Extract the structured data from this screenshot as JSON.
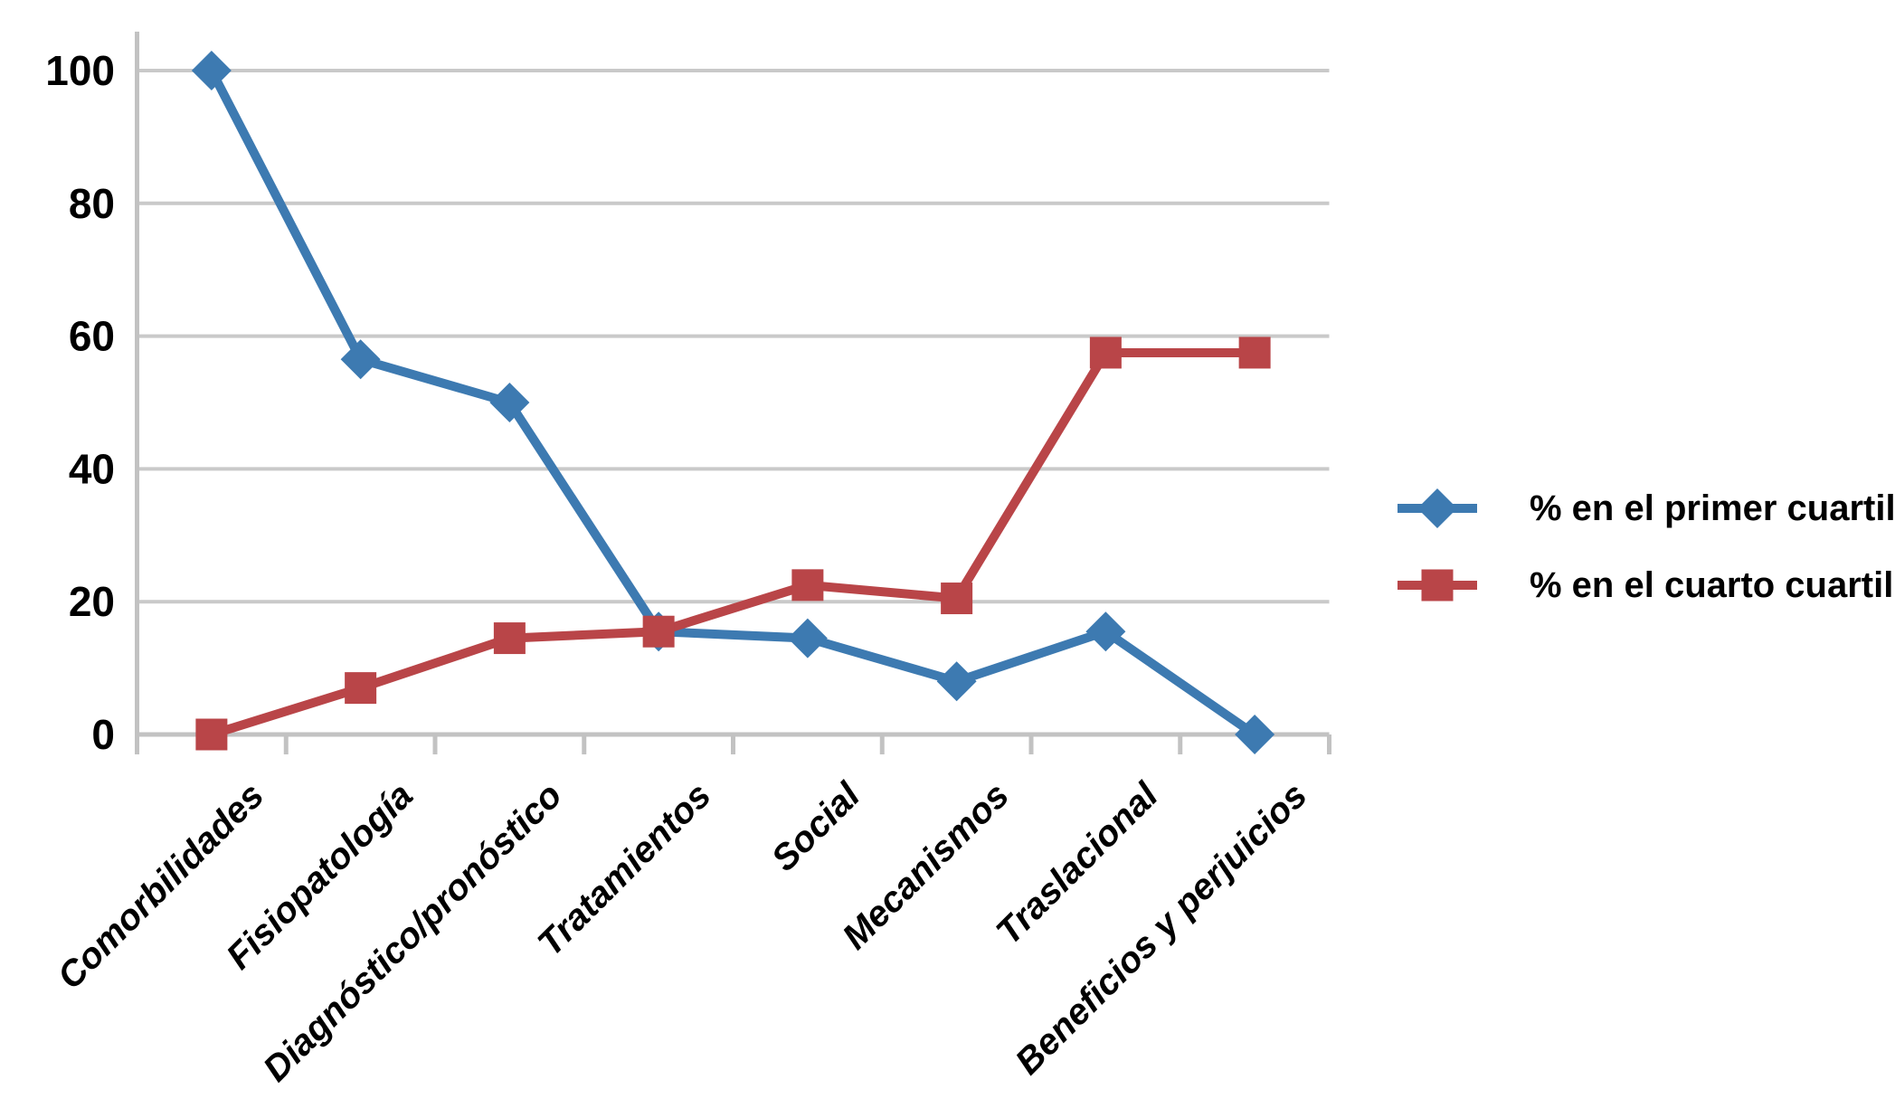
{
  "chart_data": {
    "type": "line",
    "title": "",
    "xlabel": "",
    "ylabel": "",
    "categories": [
      "Comorbilidades",
      "Fisiopatología",
      "Diagnóstico/pronóstico",
      "Tratamientos",
      "Social",
      "Mecanismos",
      "Traslacional",
      "Beneficios y perjuicios"
    ],
    "series": [
      {
        "name": "% en el primer cuartil",
        "marker": "diamond",
        "color": "#3D7AB1",
        "values": [
          100,
          56.5,
          50,
          15.5,
          14.5,
          8,
          15.5,
          0
        ]
      },
      {
        "name": "% en el cuarto cuartil",
        "marker": "square",
        "color": "#B94548",
        "values": [
          0,
          7,
          14.5,
          15.5,
          22.5,
          20.5,
          57.5,
          57.5
        ]
      }
    ],
    "ylim": [
      0,
      100
    ],
    "yticks": [
      0,
      20,
      40,
      60,
      80,
      100
    ],
    "grid": true,
    "legend_position": "right"
  },
  "colors": {
    "gridline": "#C9C9C9",
    "axis": "#C2C2C2",
    "label_text": "#000000",
    "background": "#FFFFFF"
  }
}
